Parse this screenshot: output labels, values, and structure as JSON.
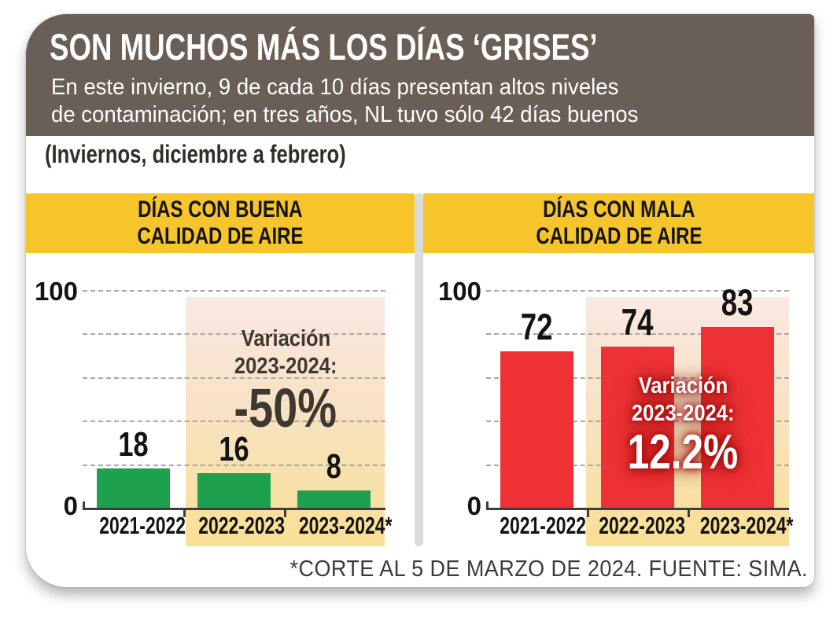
{
  "header": {
    "title": "SON MUCHOS MÁS LOS DÍAS ‘GRISES’",
    "subtitle_line1": "En este invierno, 9 de cada 10 días presentan altos niveles",
    "subtitle_line2": "de contaminación; en tres años, NL tuvo sólo 42 días buenos",
    "background": "#695F56",
    "text_color": "#FFFFFF"
  },
  "period_note": "(Inviernos, diciembre a febrero)",
  "footer": {
    "text": "*CORTE AL 5 DE MARZO DE 2024. FUENTE: SIMA."
  },
  "colors": {
    "panel_header_bg": "#F5C52B",
    "good_bar": "#1EA14E",
    "bad_bar": "#EE3134",
    "highlight_band_top": "#FBE8E2",
    "highlight_band_bottom": "#F9E094",
    "gridline": "#A8A8A8",
    "axis": "#3D3D3D",
    "divider": "#DBDBDB",
    "annotation_dark_text": "#3E3831",
    "annotation_light_text": "#FFFFFF",
    "annotation_glow": "#9E0B0B"
  },
  "chart_data": [
    {
      "type": "bar",
      "title": "DÍAS CON BUENA CALIDAD DE AIRE",
      "title_lines": [
        "DÍAS CON BUENA",
        "CALIDAD DE AIRE"
      ],
      "categories": [
        "2021-2022",
        "2022-2023",
        "2023-2024*"
      ],
      "values": [
        18,
        16,
        8
      ],
      "bar_color": "#1EA14E",
      "ylim": [
        0,
        100
      ],
      "ytick_labels": [
        "100",
        "0"
      ],
      "gridline_values": [
        100,
        80,
        60,
        40,
        20
      ],
      "grid": "dashed",
      "legend": "none",
      "highlighted_categories": [
        "2022-2023",
        "2023-2024*"
      ],
      "annotation": {
        "line1": "Variación",
        "line2": "2023-2024:",
        "value": "-50%"
      }
    },
    {
      "type": "bar",
      "title": "DÍAS CON MALA CALIDAD DE AIRE",
      "title_lines": [
        "DÍAS CON MALA",
        "CALIDAD DE AIRE"
      ],
      "categories": [
        "2021-2022",
        "2022-2023",
        "2023-2024*"
      ],
      "values": [
        72,
        74,
        83
      ],
      "bar_color": "#EE3134",
      "ylim": [
        0,
        100
      ],
      "ytick_labels": [
        "100",
        "0"
      ],
      "gridline_values": [
        100,
        80,
        60,
        40,
        20
      ],
      "grid": "dashed",
      "legend": "none",
      "highlighted_categories": [
        "2022-2023",
        "2023-2024*"
      ],
      "annotation": {
        "line1": "Variación",
        "line2": "2023-2024:",
        "value": "12.2%"
      }
    }
  ]
}
